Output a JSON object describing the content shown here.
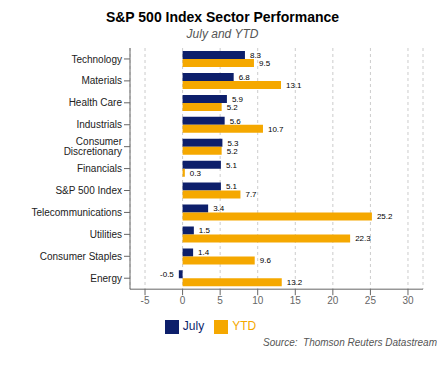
{
  "chart_data": {
    "type": "bar",
    "orientation": "horizontal",
    "title": "S&P 500 Index Sector Performance",
    "subtitle": "July and YTD",
    "annotations": [
      "Source:  Thomson Reuters Datastream"
    ],
    "categories": [
      "Technology",
      "Materials",
      "Health Care",
      "Industrials",
      "Consumer Discretionary",
      "Financials",
      "S&P 500 Index",
      "Telecommunications",
      "Utilities",
      "Consumer Staples",
      "Energy"
    ],
    "series": [
      {
        "name": "July",
        "color": "#0d1f6b",
        "values": [
          8.3,
          6.8,
          5.9,
          5.6,
          5.3,
          5.1,
          5.1,
          3.4,
          1.5,
          1.4,
          -0.5
        ]
      },
      {
        "name": "YTD",
        "color": "#f5a800",
        "values": [
          9.5,
          13.1,
          5.2,
          10.7,
          5.2,
          0.3,
          7.7,
          25.2,
          22.3,
          9.6,
          13.2
        ]
      }
    ],
    "xlim": [
      -7,
      32
    ],
    "xticks": [
      -5,
      0,
      5,
      10,
      15,
      20,
      25,
      30
    ],
    "grid": true,
    "legend": "bottom",
    "data_labels": true
  }
}
